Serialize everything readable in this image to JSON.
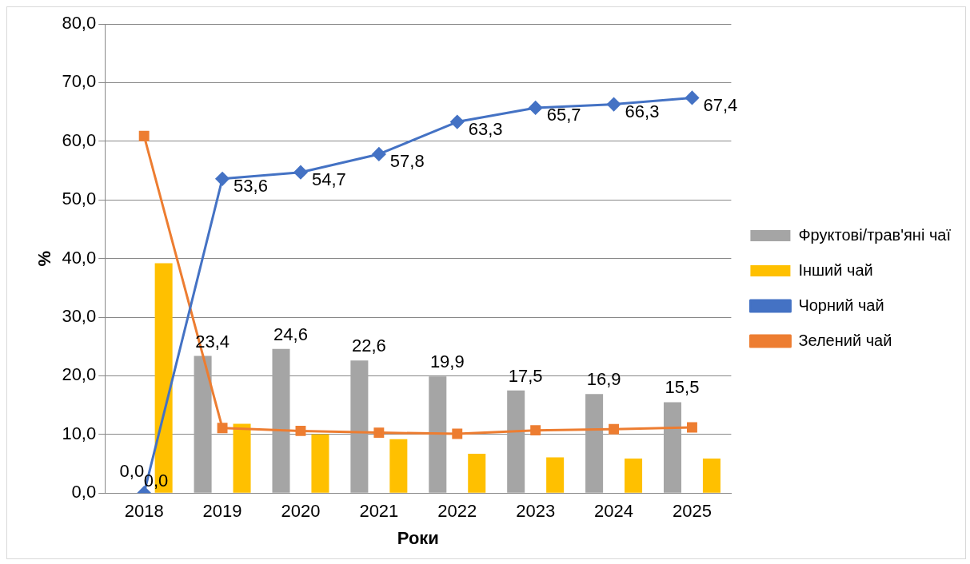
{
  "chart_data": {
    "type": "bar",
    "xlabel": "Роки",
    "ylabel": "%",
    "categories": [
      "2018",
      "2019",
      "2020",
      "2021",
      "2022",
      "2023",
      "2024",
      "2025"
    ],
    "ylim": [
      0,
      80
    ],
    "yticks": [
      {
        "value": 0,
        "label": "0,0"
      },
      {
        "value": 10,
        "label": "10,0"
      },
      {
        "value": 20,
        "label": "20,0"
      },
      {
        "value": 30,
        "label": "30,0"
      },
      {
        "value": 40,
        "label": "40,0"
      },
      {
        "value": 50,
        "label": "50,0"
      },
      {
        "value": 60,
        "label": "60,0"
      },
      {
        "value": 70,
        "label": "70,0"
      },
      {
        "value": 80,
        "label": "80,0"
      }
    ],
    "grid": "y",
    "legend": "right",
    "series": [
      {
        "name": "Фруктові/трав'яні чаї",
        "color": "#a5a5a5",
        "values": [
          0.0,
          23.4,
          24.6,
          22.6,
          19.9,
          17.5,
          16.9,
          15.5
        ],
        "value_labels": [
          "0,0",
          "23,4",
          "24,6",
          "22,6",
          "19,9",
          "17,5",
          "16,9",
          "15,5"
        ]
      },
      {
        "name": "Інший чай",
        "color": "#ffc000",
        "values": [
          39.2,
          11.8,
          10.0,
          9.2,
          6.7,
          6.1,
          5.9,
          5.9
        ]
      },
      {
        "name": "Чорний чай",
        "type": "line",
        "color": "#4472c4",
        "marker": "diamond",
        "values": [
          0.0,
          53.6,
          54.7,
          57.8,
          63.3,
          65.7,
          66.3,
          67.4
        ],
        "value_labels": [
          "0,0",
          "53,6",
          "54,7",
          "57,8",
          "63,3",
          "65,7",
          "66,3",
          "67,4"
        ]
      },
      {
        "name": "Зелений чай",
        "type": "line",
        "color": "#ed7d31",
        "marker": "square",
        "values": [
          60.9,
          11.1,
          10.6,
          10.3,
          10.1,
          10.7,
          10.9,
          11.2
        ]
      }
    ]
  }
}
